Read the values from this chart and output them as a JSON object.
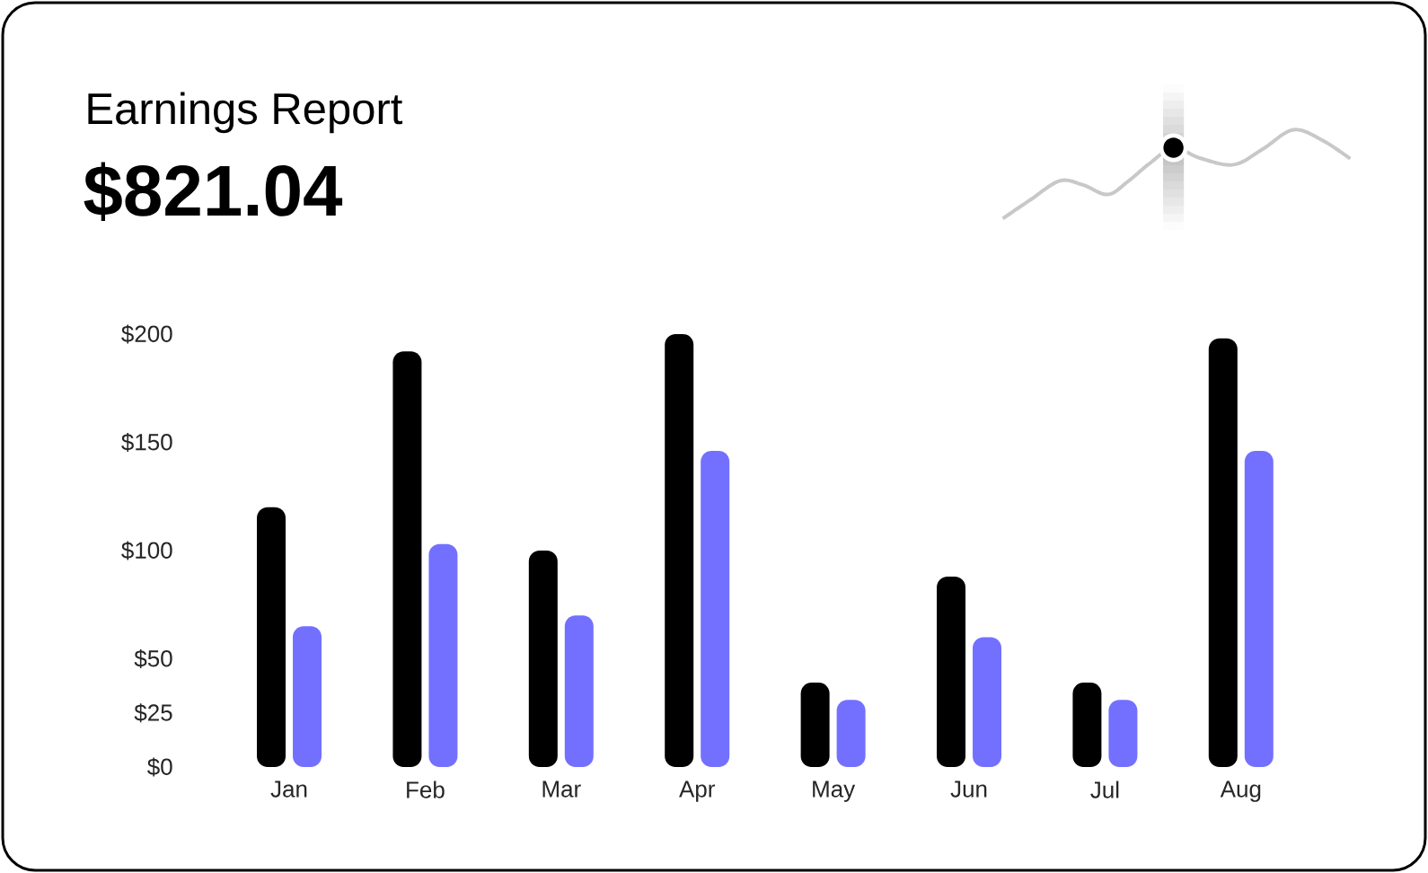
{
  "chart_data": {
    "type": "bar",
    "title": "Earnings Report",
    "subtitle": "$821.04",
    "categories": [
      "Jan",
      "Feb",
      "Mar",
      "Apr",
      "May",
      "Jun",
      "Jul",
      "Aug"
    ],
    "series": [
      {
        "color": "#000000",
        "values": [
          120,
          192,
          100,
          200,
          39,
          88,
          39,
          198
        ]
      },
      {
        "color": "#7370ff",
        "values": [
          65,
          103,
          70,
          146,
          31,
          60,
          31,
          146
        ]
      }
    ],
    "ylim": [
      0,
      200
    ],
    "yticks": [
      {
        "value": 0,
        "label": "$0"
      },
      {
        "value": 25,
        "label": "$25"
      },
      {
        "value": 50,
        "label": "$50"
      },
      {
        "value": 100,
        "label": "$100"
      },
      {
        "value": 150,
        "label": "$150"
      },
      {
        "value": 200,
        "label": "$200"
      }
    ]
  }
}
